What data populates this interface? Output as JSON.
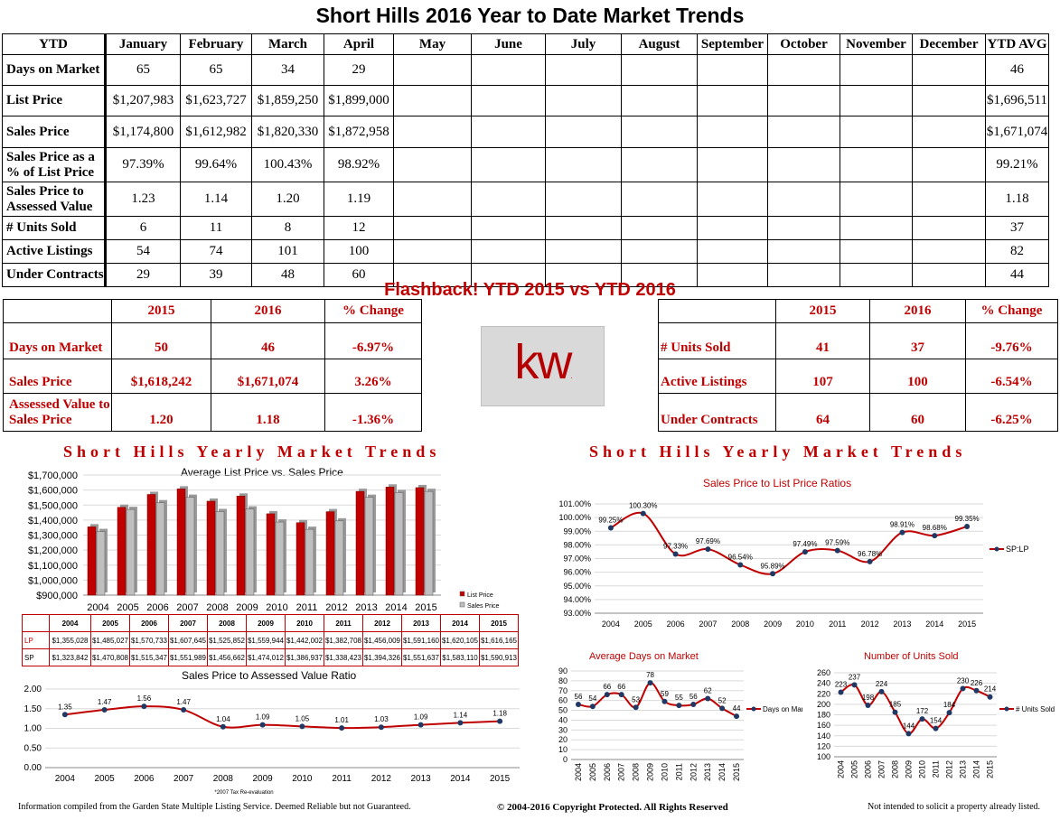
{
  "page": {
    "title": "Short Hills 2016 Year to Date Market Trends",
    "flashback_title": "Flashback!  YTD 2015 vs YTD 2016",
    "logo": "kw",
    "logo_mark": ".",
    "section_title_left": "Short Hills Yearly Market Trends",
    "section_title_right": "Short Hills Yearly Market Trends",
    "footer_left": "Information compiled from the Garden State Multiple Listing Service.  Deemed Reliable but not Guaranteed.",
    "footer_center": "© 2004-2016 Copyright Protected.  All Rights Reserved",
    "footer_right": "Not intended to solicit a property already listed."
  },
  "ytd_table": {
    "headers": [
      "YTD",
      "January",
      "February",
      "March",
      "April",
      "May",
      "June",
      "July",
      "August",
      "September",
      "October",
      "November",
      "December",
      "YTD AVG"
    ],
    "rows": [
      {
        "label": "Days on Market",
        "values": [
          "65",
          "65",
          "34",
          "29",
          "",
          "",
          "",
          "",
          "",
          "",
          "",
          ""
        ],
        "avg": "46"
      },
      {
        "label": "List Price",
        "values": [
          "$1,207,983",
          "$1,623,727",
          "$1,859,250",
          "$1,899,000",
          "",
          "",
          "",
          "",
          "",
          "",
          "",
          ""
        ],
        "avg": "$1,696,511"
      },
      {
        "label": "Sales Price",
        "values": [
          "$1,174,800",
          "$1,612,982",
          "$1,820,330",
          "$1,872,958",
          "",
          "",
          "",
          "",
          "",
          "",
          "",
          ""
        ],
        "avg": "$1,671,074"
      },
      {
        "label": "Sales Price as a % of List Price",
        "values": [
          "97.39%",
          "99.64%",
          "100.43%",
          "98.92%",
          "",
          "",
          "",
          "",
          "",
          "",
          "",
          ""
        ],
        "avg": "99.21%"
      },
      {
        "label": "Sales Price to Assessed Value",
        "values": [
          "1.23",
          "1.14",
          "1.20",
          "1.19",
          "",
          "",
          "",
          "",
          "",
          "",
          "",
          ""
        ],
        "avg": "1.18"
      },
      {
        "label": "# Units Sold",
        "values": [
          "6",
          "11",
          "8",
          "12",
          "",
          "",
          "",
          "",
          "",
          "",
          "",
          ""
        ],
        "avg": "37"
      },
      {
        "label": "Active Listings",
        "values": [
          "54",
          "74",
          "101",
          "100",
          "",
          "",
          "",
          "",
          "",
          "",
          "",
          ""
        ],
        "avg": "82"
      },
      {
        "label": "Under Contracts",
        "values": [
          "29",
          "39",
          "48",
          "60",
          "",
          "",
          "",
          "",
          "",
          "",
          "",
          ""
        ],
        "avg": "44"
      }
    ]
  },
  "flashback_left": {
    "headers": [
      "",
      "2015",
      "2016",
      "% Change"
    ],
    "rows": [
      {
        "label": "Days on Market",
        "v2015": "50",
        "v2016": "46",
        "change": "-6.97%"
      },
      {
        "label": "Sales Price",
        "v2015": "$1,618,242",
        "v2016": "$1,671,074",
        "change": "3.26%"
      },
      {
        "label": "Assessed Value to Sales Price",
        "v2015": "1.20",
        "v2016": "1.18",
        "change": "-1.36%"
      }
    ]
  },
  "flashback_right": {
    "headers": [
      "",
      "2015",
      "2016",
      "% Change"
    ],
    "rows": [
      {
        "label": "# Units Sold",
        "v2015": "41",
        "v2016": "37",
        "change": "-9.76%"
      },
      {
        "label": "Active Listings",
        "v2015": "107",
        "v2016": "100",
        "change": "-6.54%"
      },
      {
        "label": "Under Contracts",
        "v2015": "64",
        "v2016": "60",
        "change": "-6.25%"
      }
    ]
  },
  "lp_sp_table": {
    "years": [
      "2004",
      "2005",
      "2006",
      "2007",
      "2008",
      "2009",
      "2010",
      "2011",
      "2012",
      "2013",
      "2014",
      "2015"
    ],
    "lp_label": "LP",
    "sp_label": "SP",
    "lp": [
      "$1,355,028",
      "$1,485,027",
      "$1,570,733",
      "$1,607,645",
      "$1,525,852",
      "$1,559,944",
      "$1,442,002",
      "$1,382,708",
      "$1,456,009",
      "$1,591,160",
      "$1,620,105",
      "$1,616,165"
    ],
    "sp": [
      "$1,323,842",
      "$1,470,808",
      "$1,515,347",
      "$1,551,989",
      "$1,456,662",
      "$1,474,012",
      "$1,386,937",
      "$1,338,423",
      "$1,394,326",
      "$1,551,637",
      "$1,583,110",
      "$1,590,913"
    ]
  },
  "chart_data": [
    {
      "id": "avg_list_vs_sales",
      "type": "bar",
      "title": "Average List Price vs. Sales Price",
      "categories": [
        "2004",
        "2005",
        "2006",
        "2007",
        "2008",
        "2009",
        "2010",
        "2011",
        "2012",
        "2013",
        "2014",
        "2015"
      ],
      "series": [
        {
          "name": "List Price",
          "color": "#c00000",
          "values": [
            1355028,
            1485027,
            1570733,
            1607645,
            1525852,
            1559944,
            1442002,
            1382708,
            1456009,
            1591160,
            1620105,
            1616165
          ]
        },
        {
          "name": "Sales Price",
          "color": "#bfbfbf",
          "values": [
            1323842,
            1470808,
            1515347,
            1551989,
            1456662,
            1474012,
            1386937,
            1338423,
            1394326,
            1551637,
            1583110,
            1590913
          ]
        }
      ],
      "ylim": [
        900000,
        1700000
      ],
      "yticks": [
        "$900,000",
        "$1,000,000",
        "$1,100,000",
        "$1,200,000",
        "$1,300,000",
        "$1,400,000",
        "$1,500,000",
        "$1,600,000",
        "$1,700,000"
      ],
      "legend": "right"
    },
    {
      "id": "sp_to_assessed",
      "type": "line",
      "title": "Sales Price to Assessed Value Ratio",
      "note": "*2007 Tax Re-evaluation",
      "categories": [
        "2004",
        "2005",
        "2006",
        "2007",
        "2008",
        "2009",
        "2010",
        "2011",
        "2012",
        "2013",
        "2014",
        "2015"
      ],
      "values": [
        1.35,
        1.47,
        1.56,
        1.47,
        1.04,
        1.09,
        1.05,
        1.01,
        1.03,
        1.09,
        1.14,
        1.18
      ],
      "labels": [
        "1.35",
        "1.47",
        "1.56",
        "1.47",
        "1.04",
        "1.09",
        "1.05",
        "1.01",
        "1.03",
        "1.09",
        "1.14",
        "1.18"
      ],
      "ylim": [
        0,
        2
      ],
      "yticks": [
        "0.00",
        "0.50",
        "1.00",
        "1.50",
        "2.00"
      ],
      "color": "#c00000"
    },
    {
      "id": "sp_lp_ratio",
      "type": "line",
      "title": "Sales Price to List Price Ratios",
      "categories": [
        "2004",
        "2005",
        "2006",
        "2007",
        "2008",
        "2009",
        "2010",
        "2011",
        "2012",
        "2013",
        "2014",
        "2015"
      ],
      "values": [
        99.25,
        100.3,
        97.33,
        97.69,
        96.54,
        95.89,
        97.49,
        97.59,
        96.78,
        98.91,
        98.68,
        99.35
      ],
      "labels": [
        "99.25%",
        "100.30%",
        "97.33%",
        "97.69%",
        "96.54%",
        "95.89%",
        "97.49%",
        "97.59%",
        "96.78%",
        "98.91%",
        "98.68%",
        "99.35%"
      ],
      "ylim": [
        93,
        101
      ],
      "yticks": [
        "93.00%",
        "94.00%",
        "95.00%",
        "96.00%",
        "97.00%",
        "98.00%",
        "99.00%",
        "100.00%",
        "101.00%"
      ],
      "legend_label": "SP:LP",
      "color": "#c00000"
    },
    {
      "id": "avg_dom",
      "type": "line",
      "title": "Average Days on Market",
      "categories": [
        "2004",
        "2005",
        "2006",
        "2007",
        "2008",
        "2009",
        "2010",
        "2011",
        "2012",
        "2013",
        "2014",
        "2015"
      ],
      "values": [
        56,
        54,
        66,
        66,
        53,
        78,
        59,
        55,
        56,
        62,
        52,
        44
      ],
      "ylim": [
        0,
        90
      ],
      "yticks": [
        "0",
        "10",
        "20",
        "30",
        "40",
        "50",
        "60",
        "70",
        "80",
        "90"
      ],
      "legend_label": "Days on Market",
      "color": "#c00000"
    },
    {
      "id": "units_sold",
      "type": "line",
      "title": "Number of Units Sold",
      "categories": [
        "2004",
        "2005",
        "2006",
        "2007",
        "2008",
        "2009",
        "2010",
        "2011",
        "2012",
        "2013",
        "2014",
        "2015"
      ],
      "values": [
        223,
        237,
        198,
        224,
        185,
        144,
        172,
        154,
        184,
        230,
        226,
        214
      ],
      "ylim": [
        100,
        260
      ],
      "yticks": [
        "100",
        "120",
        "140",
        "160",
        "180",
        "200",
        "220",
        "240",
        "260"
      ],
      "legend_label": "# Units Sold",
      "color": "#c00000"
    }
  ]
}
